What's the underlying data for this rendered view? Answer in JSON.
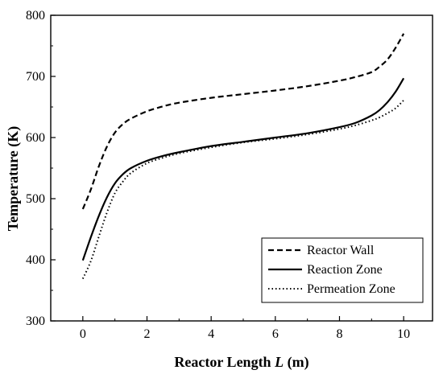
{
  "chart_data": {
    "type": "line",
    "title": "",
    "xlabel_parts": [
      "Reactor Length ",
      "L",
      " (m)"
    ],
    "ylabel": "Temperature (K)",
    "xlim": [
      -1,
      10.9
    ],
    "ylim": [
      300,
      800
    ],
    "x_ticks": [
      0,
      2,
      4,
      6,
      8,
      10
    ],
    "x_tick_labels": [
      "0",
      "2",
      "4",
      "6",
      "8",
      "10"
    ],
    "y_ticks": [
      300,
      400,
      500,
      600,
      700,
      800
    ],
    "y_tick_labels": [
      "300",
      "400",
      "500",
      "600",
      "700",
      "800"
    ],
    "grid": false,
    "legend_position": "bottom-right",
    "series": [
      {
        "name": "Reactor Wall",
        "style": "dashed",
        "color": "#000000",
        "x": [
          0,
          0.25,
          0.5,
          0.75,
          1.0,
          1.25,
          1.5,
          2.0,
          2.5,
          3.0,
          4.0,
          5.0,
          6.0,
          7.0,
          8.0,
          8.5,
          9.0,
          9.25,
          9.5,
          9.75,
          10.0
        ],
        "y": [
          483,
          515,
          553,
          585,
          608,
          622,
          631,
          643,
          651,
          657,
          665,
          671,
          677,
          684,
          693,
          699,
          707,
          716,
          728,
          747,
          770
        ]
      },
      {
        "name": "Reaction Zone",
        "style": "solid",
        "color": "#000000",
        "x": [
          0,
          0.25,
          0.5,
          0.75,
          1.0,
          1.25,
          1.5,
          2.0,
          2.5,
          3.0,
          4.0,
          5.0,
          6.0,
          7.0,
          8.0,
          8.5,
          9.0,
          9.25,
          9.5,
          9.75,
          10.0
        ],
        "y": [
          399,
          437,
          472,
          502,
          525,
          540,
          550,
          562,
          570,
          576,
          586,
          593,
          600,
          607,
          617,
          624,
          636,
          645,
          658,
          675,
          697
        ]
      },
      {
        "name": "Permeation Zone",
        "style": "dotted",
        "color": "#000000",
        "x": [
          0,
          0.25,
          0.5,
          0.75,
          1.0,
          1.25,
          1.5,
          2.0,
          2.5,
          3.0,
          4.0,
          5.0,
          6.0,
          7.0,
          8.0,
          8.5,
          9.0,
          9.25,
          9.5,
          9.75,
          10.0
        ],
        "y": [
          369,
          398,
          438,
          477,
          509,
          528,
          542,
          558,
          567,
          574,
          584,
          592,
          598,
          605,
          614,
          620,
          628,
          633,
          640,
          648,
          661
        ]
      }
    ]
  }
}
